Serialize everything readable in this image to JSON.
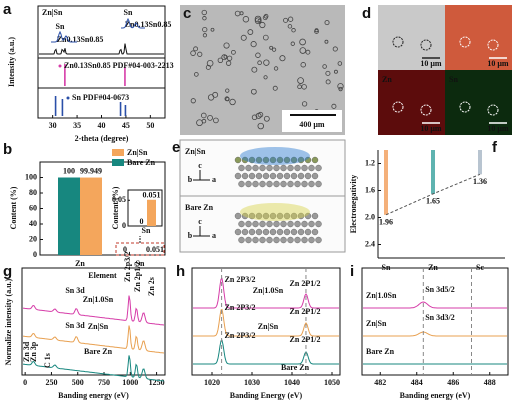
{
  "panels": {
    "a": {
      "letter": "a",
      "ylabel": "Intensity (a.u.)",
      "xlabel": "2-theta (degree)",
      "xlim": [
        27,
        53
      ],
      "xticks": [
        30,
        35,
        40,
        45,
        50
      ],
      "sample": "Zn|Sn",
      "sample_color": "#e8a050",
      "peak_labels": [
        {
          "text": "Sn",
          "color": "#2a4fa8"
        },
        {
          "text": "Zn0.13Sn0.85",
          "color": "#d63ca8"
        }
      ],
      "refs": [
        {
          "name": "Zn0.13Sn0.85 PDF#04-003-2213",
          "color": "#d63ca8",
          "positions": [
            32.5,
            44.8
          ]
        },
        {
          "name": "Sn PDF#04-0673",
          "color": "#2a4fa8",
          "positions": [
            30.6,
            32.0,
            43.9,
            44.9
          ]
        }
      ]
    },
    "b": {
      "letter": "b",
      "ylabel": "Content (%)",
      "xlabel": "Element",
      "categories": [
        "Zn",
        "Sn"
      ],
      "ylim": [
        0,
        120
      ],
      "yticks": [
        0,
        20,
        40,
        60,
        80,
        100
      ],
      "series": [
        {
          "name": "Zn|Sn",
          "color": "#f4a65c",
          "values": [
            99.949,
            0.051
          ]
        },
        {
          "name": "Bare Zn",
          "color": "#17877f",
          "values": [
            100,
            0
          ]
        }
      ],
      "inset": {
        "ylabel": "Content (%)",
        "ylim": [
          0,
          0.07
        ],
        "yticks": [
          0,
          0.05
        ]
      }
    },
    "c": {
      "letter": "c",
      "scale_bar": "400 μm"
    },
    "d": {
      "letter": "d",
      "maps": [
        "Zn",
        "Sn"
      ],
      "scale_bar": "10 μm"
    },
    "e": {
      "letter": "e",
      "samples": [
        {
          "name": "Zn|Sn",
          "color": "#e8a050"
        },
        {
          "name": "Bare Zn",
          "color": "#17877f"
        }
      ],
      "axes": [
        "b",
        "c",
        "a"
      ]
    },
    "f": {
      "letter": "f",
      "ylabel": "Electronegativity",
      "categories": [
        "Sn",
        "Zn",
        "Sc"
      ],
      "values": [
        1.96,
        1.65,
        1.36
      ],
      "colors": [
        "#f4b07a",
        "#5fb3b0",
        "#b8c4d0"
      ],
      "ylim": [
        1.0,
        2.6
      ],
      "inverted": true,
      "yticks": [
        1.2,
        1.6,
        {
          "value": 2.0,
          "label": "2.0"
        },
        2.4
      ]
    },
    "g": {
      "letter": "g",
      "ylabel": "Normalize intensity (a.u.)",
      "xlabel": "Banding energy (eV)",
      "xlim": [
        -30,
        1330
      ],
      "xticks": [
        0,
        250,
        500,
        750,
        1000,
        1250
      ],
      "series": [
        {
          "name": "Zn|1.0Sn",
          "color": "#d63ca8"
        },
        {
          "name": "Zn|Sn",
          "color": "#e8a050"
        },
        {
          "name": "Bare Zn",
          "color": "#17877f"
        }
      ],
      "peak_labels": [
        "Sn 3d",
        "Zn 2p3/2",
        "Zn 2p1/2",
        "Zn 2s",
        "C 1s",
        "Zn 3d",
        "Zn 3p"
      ]
    },
    "h": {
      "letter": "h",
      "xlabel": "Banding Energy (eV)",
      "xlim": [
        1015,
        1052
      ],
      "xticks": [
        1020,
        1030,
        1040,
        1050
      ],
      "series": [
        {
          "name": "Zn|1.0Sn",
          "color": "#d63ca8"
        },
        {
          "name": "Zn|Sn",
          "color": "#e8a050"
        },
        {
          "name": "Bare Zn",
          "color": "#17877f"
        }
      ],
      "peak_labels": [
        "Zn 2P3/2",
        "Zn 2P1/2"
      ]
    },
    "i": {
      "letter": "i",
      "xlabel": "Banding energy (eV)",
      "xlim": [
        481,
        489
      ],
      "xticks": [
        482,
        484,
        486,
        488
      ],
      "series": [
        {
          "name": "Zn|1.0Sn",
          "color": "#d63ca8"
        },
        {
          "name": "Zn|Sn",
          "color": "#e8a050"
        },
        {
          "name": "Bare Zn",
          "color": "#17877f"
        }
      ],
      "peak_labels": [
        "Sn 3d5/2",
        "Sn 3d3/2"
      ]
    }
  }
}
